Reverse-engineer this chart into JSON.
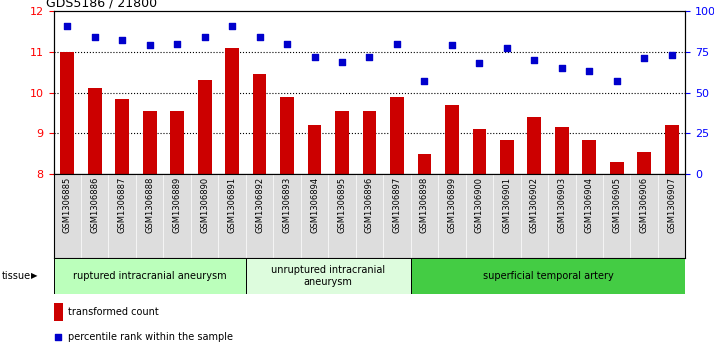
{
  "title": "GDS5186 / 21800",
  "samples": [
    "GSM1306885",
    "GSM1306886",
    "GSM1306887",
    "GSM1306888",
    "GSM1306889",
    "GSM1306890",
    "GSM1306891",
    "GSM1306892",
    "GSM1306893",
    "GSM1306894",
    "GSM1306895",
    "GSM1306896",
    "GSM1306897",
    "GSM1306898",
    "GSM1306899",
    "GSM1306900",
    "GSM1306901",
    "GSM1306902",
    "GSM1306903",
    "GSM1306904",
    "GSM1306905",
    "GSM1306906",
    "GSM1306907"
  ],
  "bar_values": [
    11.0,
    10.1,
    9.85,
    9.55,
    9.55,
    10.3,
    11.1,
    10.45,
    9.9,
    9.2,
    9.55,
    9.55,
    9.9,
    8.5,
    9.7,
    9.1,
    8.85,
    9.4,
    9.15,
    8.85,
    8.3,
    8.55,
    9.2
  ],
  "dot_values": [
    91,
    84,
    82,
    79,
    80,
    84,
    91,
    84,
    80,
    72,
    69,
    72,
    80,
    57,
    79,
    68,
    77,
    70,
    65,
    63,
    57,
    71,
    73
  ],
  "bar_color": "#cc0000",
  "dot_color": "#0000cc",
  "ylim_left": [
    8,
    12
  ],
  "ylim_right": [
    0,
    100
  ],
  "yticks_left": [
    8,
    9,
    10,
    11,
    12
  ],
  "yticks_right": [
    0,
    25,
    50,
    75,
    100
  ],
  "ytick_labels_right": [
    "0",
    "25",
    "50",
    "75",
    "100%"
  ],
  "groups": [
    {
      "label": "ruptured intracranial aneurysm",
      "start": 0,
      "end": 7,
      "color": "#bbffbb"
    },
    {
      "label": "unruptured intracranial\naneurysm",
      "start": 7,
      "end": 13,
      "color": "#ddfcdd"
    },
    {
      "label": "superficial temporal artery",
      "start": 13,
      "end": 23,
      "color": "#44cc44"
    }
  ],
  "tissue_label": "tissue",
  "legend_bar_label": "transformed count",
  "legend_dot_label": "percentile rank within the sample",
  "dotted_lines": [
    9,
    10,
    11
  ],
  "xticklabel_bg": "#dddddd",
  "plot_bg": "#ffffff"
}
